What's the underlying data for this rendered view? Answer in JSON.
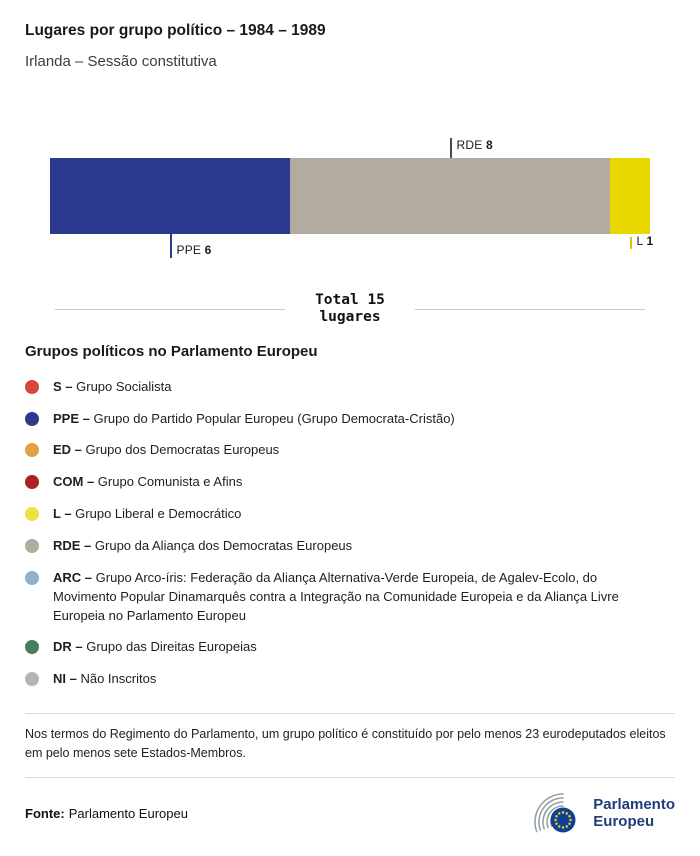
{
  "header": {
    "title": "Lugares por grupo político – 1984 – 1989",
    "subtitle": "Irlanda – Sessão constitutiva"
  },
  "chart_data": {
    "type": "bar",
    "orientation": "horizontal-stacked",
    "title": "Lugares por grupo político – 1984 – 1989",
    "subtitle": "Irlanda – Sessão constitutiva",
    "total": 15,
    "total_label": "Total 15",
    "total_sublabel": "lugares",
    "segments": [
      {
        "code": "PPE",
        "value": 6,
        "color": "#2b3a8f",
        "label_position": "below",
        "tick_color": "#2b3a8f",
        "tick_height": 24
      },
      {
        "code": "RDE",
        "value": 8,
        "color": "#b3ab9f",
        "label_position": "above",
        "tick_color": "#4a4a4a",
        "tick_height": 20
      },
      {
        "code": "L",
        "value": 1,
        "color": "#e8d800",
        "label_position": "below",
        "tick_color": "#d6c900",
        "tick_height": 12
      }
    ]
  },
  "legend": {
    "heading": "Grupos políticos no Parlamento Europeu",
    "items": [
      {
        "code": "S –",
        "label": "Grupo Socialista",
        "color": "#d9453c"
      },
      {
        "code": "PPE –",
        "label": "Grupo do Partido Popular Europeu (Grupo Democrata-Cristão)",
        "color": "#2b3a8f"
      },
      {
        "code": "ED –",
        "label": "Grupo dos Democratas Europeus",
        "color": "#e0a23e"
      },
      {
        "code": "COM –",
        "label": "Grupo Comunista e Afins",
        "color": "#b01f24"
      },
      {
        "code": "L –",
        "label": "Grupo Liberal e Democrático",
        "color": "#ece43c"
      },
      {
        "code": "RDE –",
        "label": "Grupo da Aliança dos Democratas Europeus",
        "color": "#b3ab9f"
      },
      {
        "code": "ARC –",
        "label": "Grupo Arco-íris: Federação da Aliança Alternativa-Verde Europeia, de Agalev-Ecolo, do Movimento Popular Dinamarquês contra a Integração na Comunidade Europeia e da Aliança Livre Europeia no Parlamento Europeu",
        "color": "#8fb0c8"
      },
      {
        "code": "DR –",
        "label": "Grupo das Direitas Europeias",
        "color": "#4d7a62"
      },
      {
        "code": "NI –",
        "label": "Não Inscritos",
        "color": "#b5b5b5"
      }
    ]
  },
  "footnote": "Nos termos do Regimento do Parlamento, um grupo político é constituído por pelo menos 23 eurodeputados eleitos em pelo menos sete Estados-Membros.",
  "footer": {
    "source_label": "Fonte:",
    "source_text": "Parlamento Europeu"
  },
  "logo": {
    "line1": "Parlamento",
    "line2": "Europeu"
  },
  "colors": {
    "logo_text": "#1f3d7a",
    "logo_arcs": "#97a0a8",
    "eu_flag_blue": "#0e4194",
    "eu_star_yellow": "#ffd617",
    "divider": "#c9c9c9"
  }
}
